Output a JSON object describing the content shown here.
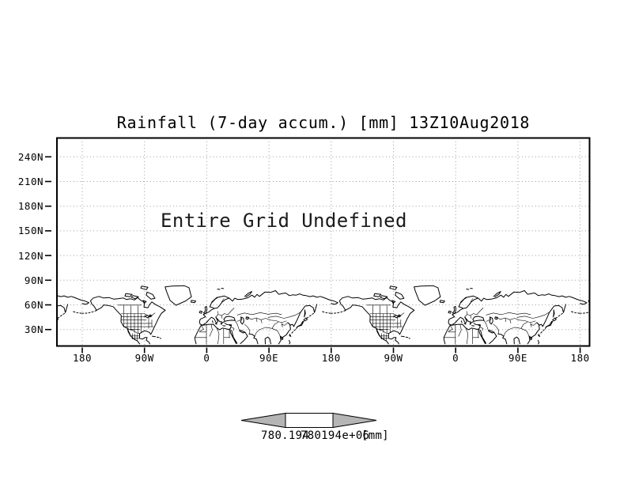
{
  "plot": {
    "title": "Rainfall (7-day accum.) [mm] 13Z10Aug2018"
  },
  "notice": {
    "text": "Entire Grid Undefined"
  },
  "axes": {
    "lat_labels": [
      "240N",
      "210N",
      "180N",
      "150N",
      "120N",
      "90N",
      "60N",
      "30N"
    ],
    "lon_labels": [
      "180",
      "90W",
      "0",
      "90E",
      "180",
      "90W",
      "0",
      "90E",
      "180"
    ]
  },
  "colorbar": {
    "min_label": "780.194",
    "max_label": "780194e+06",
    "units_label": "[mm]",
    "arrow_color": "#b5b5b5",
    "box_color": "#ffffff"
  },
  "colors": {
    "grid": "#9a9a9a",
    "frame": "#000000",
    "coastline": "#000000",
    "background": "#ffffff"
  },
  "chart_data": {
    "type": "heatmap",
    "title": "Rainfall (7-day accum.) [mm] 13Z10Aug2018",
    "x_tick_labels": [
      "180",
      "90W",
      "0",
      "90E",
      "180",
      "90W",
      "0",
      "90E",
      "180"
    ],
    "y_tick_labels": [
      "30N",
      "60N",
      "90N",
      "120N",
      "150N",
      "180N",
      "210N",
      "240N"
    ],
    "values": [],
    "annotations": [
      "Entire Grid Undefined"
    ],
    "grid": true,
    "legend_position": "bottom",
    "colorbar": {
      "labels": [
        "780.194",
        "780194e+06"
      ],
      "units": "[mm]"
    },
    "basemap": "world coastlines with political boundaries, longitude band repeated twice"
  }
}
